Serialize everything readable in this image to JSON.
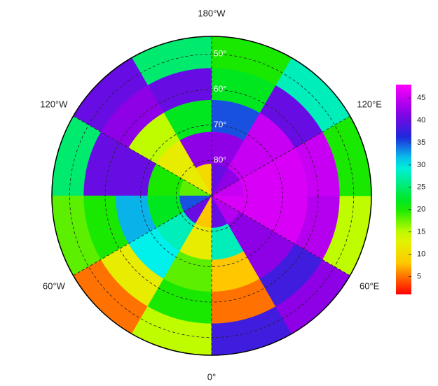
{
  "chart_data": {
    "type": "polar-map",
    "latlim": [
      45,
      90
    ],
    "lon_edges": [
      -180,
      -150,
      -120,
      -90,
      -60,
      -30,
      0,
      30,
      60,
      90,
      120,
      150,
      180
    ],
    "lat_edges": [
      45,
      54,
      63,
      72,
      81,
      90
    ],
    "values": [
      [
        25,
        40,
        25,
        18,
        5,
        15,
        38,
        42,
        15,
        20,
        28,
        20
      ],
      [
        40,
        42,
        40,
        20,
        12,
        20,
        5,
        38,
        44,
        45,
        40,
        22
      ],
      [
        22,
        15,
        40,
        32,
        30,
        18,
        8,
        42,
        46,
        46,
        45,
        35
      ],
      [
        42,
        12,
        20,
        22,
        28,
        12,
        28,
        42,
        46,
        46,
        45,
        42
      ],
      [
        10,
        12,
        18,
        35,
        40,
        8,
        40,
        44,
        46,
        45,
        42,
        40
      ]
    ],
    "lon_ticks": [
      {
        "value": -180,
        "label": "180°W"
      },
      {
        "value": -120,
        "label": "120°W"
      },
      {
        "value": -60,
        "label": "60°W"
      },
      {
        "value": 0,
        "label": "0°"
      },
      {
        "value": 60,
        "label": "60°E"
      },
      {
        "value": 120,
        "label": "120°E"
      }
    ],
    "lat_ticks": [
      {
        "value": 50,
        "label": "50°"
      },
      {
        "value": 60,
        "label": "60°"
      },
      {
        "value": 70,
        "label": "70°"
      },
      {
        "value": 80,
        "label": "80°"
      }
    ],
    "clim": [
      1,
      48
    ],
    "cticks": [
      5,
      10,
      15,
      20,
      25,
      30,
      35,
      40,
      45
    ]
  }
}
